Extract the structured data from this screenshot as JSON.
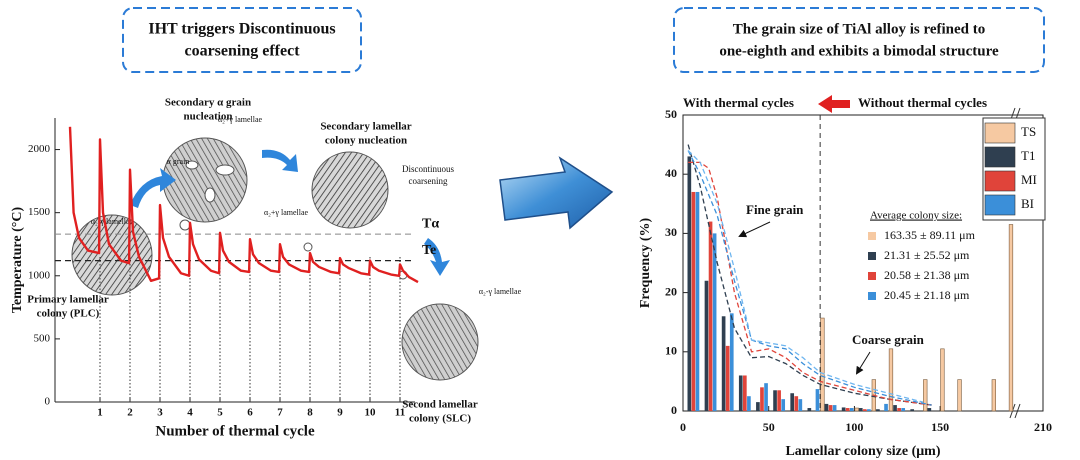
{
  "chart_data": [
    {
      "type": "line",
      "title": [
        "IHT triggers Discontinuous",
        "coarsening effect"
      ],
      "x_label": "Number of thermal cycle",
      "y_label": "Temperature (°C)",
      "xlim": [
        -0.5,
        11.5
      ],
      "ylim": [
        0,
        2250
      ],
      "xticks": [
        1,
        2,
        3,
        4,
        5,
        6,
        7,
        8,
        9,
        10,
        11
      ],
      "yticks": [
        0,
        500,
        1000,
        1500,
        2000
      ],
      "x": [
        0,
        0.12,
        0.3,
        0.6,
        0.97,
        1,
        1.1,
        1.3,
        1.7,
        1.97,
        2,
        2.1,
        2.3,
        2.7,
        2.97,
        3,
        3.1,
        3.3,
        3.7,
        3.97,
        4,
        4.1,
        4.3,
        4.7,
        4.97,
        5,
        5.1,
        5.3,
        5.7,
        5.97,
        6,
        6.1,
        6.3,
        6.7,
        6.97,
        7,
        7.1,
        7.3,
        7.7,
        7.97,
        8,
        8.1,
        8.3,
        8.7,
        8.97,
        9,
        9.1,
        9.3,
        9.7,
        9.97,
        10,
        10.1,
        10.3,
        10.7,
        10.97,
        11,
        11.1,
        11.3,
        11.6
      ],
      "series": [
        {
          "color": "#e02020",
          "values": [
            2180,
            1500,
            1300,
            1200,
            1180,
            2080,
            1500,
            1250,
            1120,
            1100,
            1840,
            1350,
            1150,
            960,
            980,
            1560,
            1300,
            1150,
            1020,
            1000,
            1420,
            1250,
            1130,
            1040,
            1020,
            1340,
            1200,
            1110,
            1040,
            1030,
            1290,
            1170,
            1100,
            1040,
            1030,
            1250,
            1150,
            1090,
            1040,
            1030,
            1180,
            1110,
            1070,
            1030,
            1020,
            1140,
            1090,
            1060,
            1020,
            1010,
            1120,
            1070,
            1040,
            1010,
            1000,
            1090,
            1040,
            990,
            950
          ]
        }
      ],
      "reference_lines": [
        {
          "label": "Tα",
          "value": 1330
        },
        {
          "label": "Te",
          "value": 1120
        }
      ],
      "annotations": [
        {
          "text": [
            "Secondary α grain",
            "nucleation"
          ]
        },
        {
          "text": [
            "Secondary lamellar",
            "colony nucleation"
          ]
        },
        {
          "text": [
            "Discontinuous",
            "coarsening"
          ]
        },
        {
          "text": [
            "α grain"
          ]
        },
        {
          "text": [
            "α₂+γ lamellae"
          ]
        },
        {
          "text": [
            "α₂+γ lamellae"
          ]
        },
        {
          "text": [
            "α₂-γ lamellae"
          ]
        },
        {
          "text": [
            "Primary lamellar",
            "colony (PLC)"
          ]
        },
        {
          "text": [
            "α₂-γ lamellae"
          ]
        },
        {
          "text": [
            "Second lamellar",
            "colony (SLC)"
          ]
        }
      ]
    },
    {
      "type": "bar",
      "title": [
        "The grain size of TiAl alloy is refined to",
        "one-eighth and exhibits a bimodal structure"
      ],
      "x_label": "Lamellar colony size (μm)",
      "y_label": "Frequency (%)",
      "xlim": [
        0,
        210
      ],
      "ylim": [
        0,
        50
      ],
      "xticks": [
        0,
        50,
        100,
        150,
        210
      ],
      "yticks": [
        0,
        10,
        20,
        30,
        40,
        50
      ],
      "legend": "upper right",
      "x": [
        5,
        15,
        25,
        35,
        45,
        55,
        65,
        75,
        85,
        95,
        105,
        115,
        125,
        135,
        145,
        155,
        165,
        175,
        185,
        195
      ],
      "series": [
        {
          "name": "TS",
          "color": "#f6c9a2",
          "values": [
            0,
            0,
            0,
            0,
            0,
            0,
            0,
            0,
            15.7,
            0,
            0.5,
            5.3,
            10.5,
            0,
            5.3,
            10.5,
            5.3,
            0,
            5.3,
            31.5
          ]
        },
        {
          "name": "T1",
          "color": "#2f3f50",
          "values": [
            43,
            22,
            16,
            6,
            1.5,
            3.5,
            3,
            0.5,
            1.2,
            0.6,
            0.5,
            0.3,
            1,
            0.3,
            0.5,
            0,
            0,
            0,
            0,
            0
          ]
        },
        {
          "name": "MI",
          "color": "#e0443a",
          "values": [
            37,
            32,
            11,
            6,
            4,
            3.5,
            2.5,
            0,
            1,
            0.5,
            0.3,
            0,
            0.5,
            0,
            0,
            0,
            0,
            0,
            0,
            0
          ]
        },
        {
          "name": "BI",
          "color": "#3b8fd9",
          "values": [
            37,
            30,
            16.5,
            2.5,
            4.7,
            2,
            2,
            3.7,
            1,
            0.5,
            0.3,
            1.2,
            0.5,
            0,
            0,
            0,
            0,
            0,
            0,
            0
          ]
        }
      ],
      "fits": [
        {
          "color": "#2f3f50",
          "x": [
            3,
            10,
            20,
            30,
            40,
            50,
            60,
            70,
            80,
            100,
            120,
            145
          ],
          "values": [
            45,
            38,
            25,
            14,
            9,
            9.2,
            8,
            6,
            4.5,
            3,
            2,
            1
          ]
        },
        {
          "color": "#e0443a",
          "x": [
            3,
            10,
            15,
            20,
            30,
            40,
            50,
            60,
            70,
            80,
            100,
            120,
            145
          ],
          "values": [
            42,
            42,
            41,
            36,
            20,
            10,
            10.5,
            9,
            6.5,
            5,
            3.5,
            2,
            1
          ]
        },
        {
          "color": "#3b8fd9",
          "x": [
            3,
            10,
            20,
            30,
            40,
            50,
            60,
            70,
            80,
            100,
            120,
            145
          ],
          "values": [
            44,
            40,
            33,
            22,
            12,
            11,
            10.5,
            8,
            6,
            4,
            2.5,
            1
          ]
        },
        {
          "color": "#6fb6f0",
          "x": [
            3,
            10,
            20,
            30,
            40,
            50,
            60,
            70,
            80,
            100,
            120,
            140
          ],
          "values": [
            44,
            42,
            35,
            24,
            12,
            11.5,
            11,
            9,
            6.5,
            4.5,
            3,
            1.5
          ]
        }
      ],
      "reference_x": 80,
      "annotations": [
        {
          "text": [
            "With thermal cycles"
          ]
        },
        {
          "text": [
            "Without thermal cycles"
          ]
        },
        {
          "text": [
            "Fine grain"
          ]
        },
        {
          "text": [
            "Coarse grain"
          ]
        }
      ],
      "average_title": "Average colony size:",
      "averages": [
        "163.35 ± 89.11  μm",
        "21.31 ± 25.52  μm",
        "20.58 ± 21.38  μm",
        "20.45 ± 21.18  μm"
      ]
    }
  ]
}
